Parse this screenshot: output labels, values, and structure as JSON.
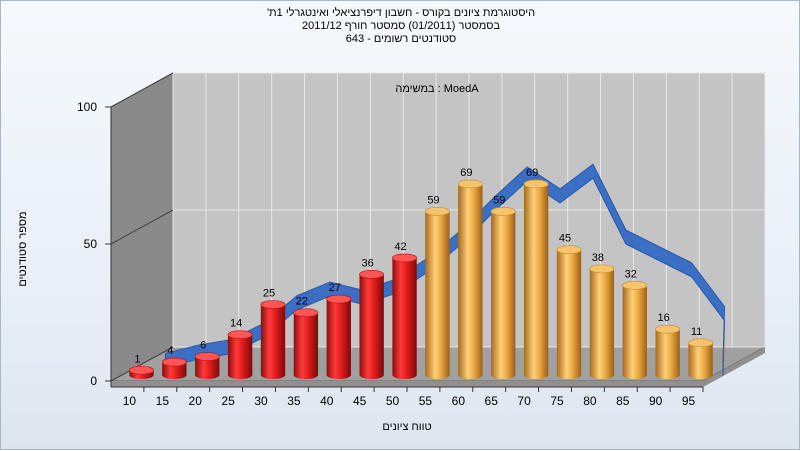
{
  "chart_data": {
    "type": "bar",
    "title_lines": [
      "היסטוגרמת ציונים בקורס - חשבון דיפרנציאלי ואינטגרלי 1ת'",
      "בסמסטר  (01/2011)  סמסטר חורף 2011/12",
      "סטודנטים רשומים - 643"
    ],
    "annotation": "במשימה : MoedA",
    "xlabel": "טווח ציונים",
    "ylabel": "מספר סטודנטים",
    "categories": [
      "10",
      "15",
      "20",
      "25",
      "30",
      "35",
      "40",
      "45",
      "50",
      "55",
      "60",
      "65",
      "70",
      "75",
      "80",
      "85",
      "90",
      "95"
    ],
    "values": [
      1,
      4,
      6,
      14,
      25,
      22,
      27,
      36,
      42,
      59,
      69,
      59,
      69,
      45,
      38,
      32,
      16,
      11
    ],
    "curve_values": [
      5,
      8,
      10,
      16,
      26,
      31,
      28,
      32,
      40,
      50,
      62,
      73,
      65,
      74,
      50,
      44,
      38,
      22
    ],
    "y_ticks": [
      0,
      50,
      100
    ],
    "ylim": [
      0,
      100
    ],
    "grid": true,
    "colors": {
      "fail_bar": "#d91a1a",
      "pass_bar": "#e8a33a",
      "curve": "#3a6fc4"
    },
    "fail_below": 55
  }
}
